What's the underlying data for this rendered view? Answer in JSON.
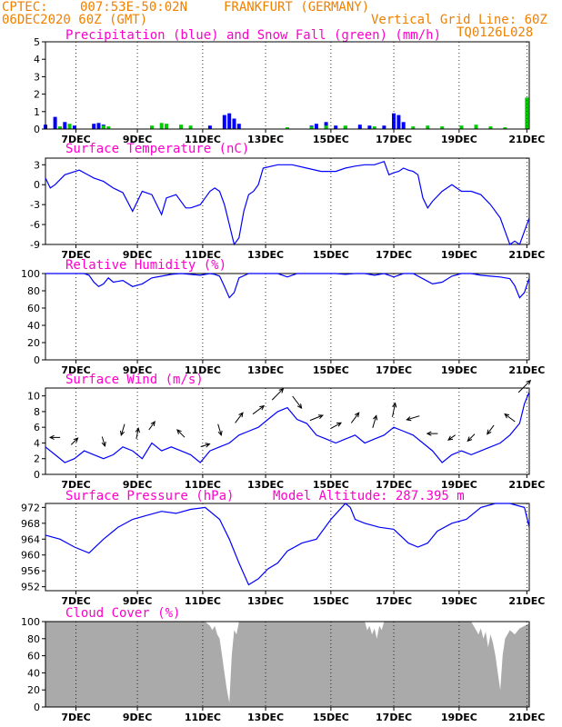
{
  "header": {
    "source": "CPTEC:",
    "coords": "007:53E-50:02N",
    "location": "FRANKFURT (GERMANY)",
    "run": "06DEC2020 60Z (GMT)",
    "grid_note": "Vertical Grid Line: 60Z",
    "code": "TQ0126L028"
  },
  "colors": {
    "header": "#f08000",
    "panel_title": "#ff00cc",
    "line": "#0000ff",
    "precip": "#0000ff",
    "snow": "#00cc00",
    "cloud": "#aaaaaa"
  },
  "chart_data": [
    {
      "id": "precip",
      "type": "bar",
      "title": "Precipitation (blue) and Snow Fall (green) (mm/h)",
      "ylim": [
        0,
        5
      ],
      "yticks": [
        "0",
        "1",
        "2",
        "3",
        "4",
        "5"
      ],
      "xticks": [
        "7DEC",
        "9DEC",
        "11DEC",
        "13DEC",
        "15DEC",
        "17DEC",
        "19DEC",
        "21DEC"
      ],
      "grid": true,
      "series": [
        {
          "name": "Precipitation",
          "color": "#0000ff",
          "points": [
            [
              0.0,
              0.25
            ],
            [
              0.02,
              0.7
            ],
            [
              0.04,
              0.4
            ],
            [
              0.06,
              0.2
            ],
            [
              0.1,
              0.3
            ],
            [
              0.11,
              0.35
            ],
            [
              0.12,
              0.25
            ],
            [
              0.34,
              0.2
            ],
            [
              0.37,
              0.8
            ],
            [
              0.38,
              0.9
            ],
            [
              0.39,
              0.6
            ],
            [
              0.4,
              0.3
            ],
            [
              0.55,
              0.2
            ],
            [
              0.56,
              0.3
            ],
            [
              0.58,
              0.4
            ],
            [
              0.6,
              0.2
            ],
            [
              0.62,
              0.15
            ],
            [
              0.65,
              0.25
            ],
            [
              0.67,
              0.2
            ],
            [
              0.7,
              0.2
            ],
            [
              0.72,
              0.9
            ],
            [
              0.73,
              0.8
            ],
            [
              0.74,
              0.4
            ]
          ]
        },
        {
          "name": "Snow Fall",
          "color": "#00cc00",
          "points": [
            [
              0.03,
              0.15
            ],
            [
              0.05,
              0.3
            ],
            [
              0.12,
              0.2
            ],
            [
              0.13,
              0.15
            ],
            [
              0.22,
              0.2
            ],
            [
              0.24,
              0.35
            ],
            [
              0.25,
              0.3
            ],
            [
              0.28,
              0.25
            ],
            [
              0.3,
              0.2
            ],
            [
              0.5,
              0.1
            ],
            [
              0.55,
              0.15
            ],
            [
              0.58,
              0.2
            ],
            [
              0.62,
              0.2
            ],
            [
              0.68,
              0.15
            ],
            [
              0.76,
              0.15
            ],
            [
              0.79,
              0.2
            ],
            [
              0.82,
              0.15
            ],
            [
              0.86,
              0.2
            ],
            [
              0.89,
              0.25
            ],
            [
              0.92,
              0.15
            ],
            [
              0.95,
              0.1
            ],
            [
              0.995,
              1.8
            ]
          ]
        }
      ]
    },
    {
      "id": "temp",
      "type": "line",
      "title": "Surface Temperature (nC)",
      "ylim": [
        -9,
        4
      ],
      "yticks": [
        "3",
        "0",
        "-3",
        "-6",
        "-9"
      ],
      "ytick_values": [
        3,
        0,
        -3,
        -6,
        -9
      ],
      "xticks": [
        "7DEC",
        "9DEC",
        "11DEC",
        "13DEC",
        "15DEC",
        "17DEC",
        "19DEC",
        "21DEC"
      ],
      "grid": true,
      "x": [
        0.0,
        0.01,
        0.02,
        0.04,
        0.07,
        0.08,
        0.1,
        0.12,
        0.14,
        0.16,
        0.18,
        0.2,
        0.22,
        0.24,
        0.25,
        0.27,
        0.29,
        0.3,
        0.32,
        0.33,
        0.34,
        0.35,
        0.36,
        0.37,
        0.38,
        0.39,
        0.4,
        0.41,
        0.42,
        0.43,
        0.44,
        0.45,
        0.48,
        0.51,
        0.54,
        0.57,
        0.6,
        0.62,
        0.64,
        0.66,
        0.68,
        0.7,
        0.71,
        0.72,
        0.73,
        0.74,
        0.75,
        0.76,
        0.77,
        0.78,
        0.79,
        0.8,
        0.82,
        0.84,
        0.86,
        0.88,
        0.9,
        0.92,
        0.94,
        0.95,
        0.96,
        0.97,
        0.98,
        0.99,
        1.0
      ],
      "values": [
        1.0,
        -0.5,
        0.0,
        1.5,
        2.2,
        1.8,
        1.0,
        0.5,
        -0.5,
        -1.2,
        -4.0,
        -1.0,
        -1.5,
        -4.5,
        -2.0,
        -1.5,
        -3.5,
        -3.5,
        -3.0,
        -2.0,
        -1.0,
        -0.5,
        -1.0,
        -3.0,
        -6.0,
        -9.0,
        -8.0,
        -4.0,
        -1.5,
        -1.0,
        0.0,
        2.5,
        3.0,
        3.0,
        2.5,
        2.0,
        2.0,
        2.5,
        2.8,
        3.0,
        3.0,
        3.5,
        1.5,
        1.8,
        2.0,
        2.5,
        2.2,
        2.0,
        1.5,
        -2.0,
        -3.5,
        -2.5,
        -1.0,
        0.0,
        -1.0,
        -1.0,
        -1.5,
        -3.0,
        -5.0,
        -7.0,
        -9.0,
        -8.5,
        -9.0,
        -7.0,
        -5.0
      ]
    },
    {
      "id": "rh",
      "type": "line",
      "title": "Relative Humidity (%)",
      "ylim": [
        0,
        100
      ],
      "yticks": [
        "100",
        "80",
        "60",
        "40",
        "20",
        "0"
      ],
      "ytick_values": [
        100,
        80,
        60,
        40,
        20,
        0
      ],
      "xticks": [
        "7DEC",
        "9DEC",
        "11DEC",
        "13DEC",
        "15DEC",
        "17DEC",
        "19DEC",
        "21DEC"
      ],
      "grid": true,
      "x": [
        0.0,
        0.02,
        0.04,
        0.06,
        0.08,
        0.09,
        0.1,
        0.11,
        0.12,
        0.13,
        0.14,
        0.16,
        0.18,
        0.2,
        0.22,
        0.24,
        0.26,
        0.28,
        0.3,
        0.32,
        0.34,
        0.35,
        0.36,
        0.37,
        0.38,
        0.39,
        0.4,
        0.42,
        0.44,
        0.46,
        0.48,
        0.5,
        0.52,
        0.54,
        0.56,
        0.58,
        0.6,
        0.62,
        0.64,
        0.66,
        0.68,
        0.7,
        0.72,
        0.74,
        0.76,
        0.78,
        0.8,
        0.82,
        0.84,
        0.86,
        0.88,
        0.9,
        0.92,
        0.94,
        0.96,
        0.97,
        0.98,
        0.99,
        1.0
      ],
      "values": [
        100,
        100,
        100,
        100,
        100,
        98,
        90,
        85,
        88,
        95,
        90,
        92,
        85,
        88,
        95,
        97,
        99,
        100,
        99,
        98,
        100,
        99,
        97,
        85,
        72,
        78,
        95,
        100,
        100,
        100,
        100,
        96,
        100,
        100,
        100,
        100,
        100,
        99,
        100,
        100,
        98,
        100,
        96,
        100,
        100,
        94,
        88,
        90,
        97,
        100,
        100,
        98,
        97,
        96,
        94,
        86,
        72,
        78,
        95
      ]
    },
    {
      "id": "wind",
      "type": "line",
      "title": "Surface Wind (m/s)",
      "ylim": [
        0,
        11
      ],
      "yticks": [
        "10",
        "8",
        "6",
        "4",
        "2",
        "0"
      ],
      "ytick_values": [
        10,
        8,
        6,
        4,
        2,
        0
      ],
      "xticks": [
        "7DEC",
        "9DEC",
        "11DEC",
        "13DEC",
        "15DEC",
        "17DEC",
        "19DEC",
        "21DEC"
      ],
      "grid": true,
      "x": [
        0.0,
        0.02,
        0.04,
        0.06,
        0.08,
        0.1,
        0.12,
        0.14,
        0.16,
        0.18,
        0.2,
        0.22,
        0.24,
        0.26,
        0.28,
        0.3,
        0.32,
        0.34,
        0.36,
        0.38,
        0.4,
        0.42,
        0.44,
        0.46,
        0.48,
        0.5,
        0.52,
        0.54,
        0.56,
        0.58,
        0.6,
        0.62,
        0.64,
        0.66,
        0.68,
        0.7,
        0.72,
        0.74,
        0.76,
        0.78,
        0.8,
        0.82,
        0.84,
        0.86,
        0.88,
        0.9,
        0.92,
        0.94,
        0.96,
        0.98,
        0.99,
        1.0
      ],
      "values": [
        3.5,
        2.5,
        1.5,
        2.0,
        3.0,
        2.5,
        2.0,
        2.5,
        3.5,
        3.0,
        2.0,
        4.0,
        3.0,
        3.5,
        3.0,
        2.5,
        1.5,
        3.0,
        3.5,
        4.0,
        5.0,
        5.5,
        6.0,
        7.0,
        8.0,
        8.5,
        7.0,
        6.5,
        5.0,
        4.5,
        4.0,
        4.5,
        5.0,
        4.0,
        4.5,
        5.0,
        6.0,
        5.5,
        5.0,
        4.0,
        3.0,
        1.5,
        2.5,
        3.0,
        2.5,
        3.0,
        3.5,
        4.0,
        5.0,
        6.5,
        9.0,
        10.5
      ],
      "arrows": [
        [
          0.02,
          -1,
          0
        ],
        [
          0.06,
          0.7,
          0.7
        ],
        [
          0.12,
          0.3,
          -1
        ],
        [
          0.16,
          -0.3,
          -1
        ],
        [
          0.19,
          0.2,
          1
        ],
        [
          0.22,
          0.5,
          0.7
        ],
        [
          0.28,
          -0.7,
          0.7
        ],
        [
          0.33,
          1,
          0.3
        ],
        [
          0.36,
          0.3,
          -1
        ],
        [
          0.4,
          0.6,
          0.8
        ],
        [
          0.44,
          0.8,
          0.6
        ],
        [
          0.48,
          0.7,
          0.7
        ],
        [
          0.52,
          0.6,
          -0.8
        ],
        [
          0.56,
          1,
          0.4
        ],
        [
          0.6,
          0.9,
          0.5
        ],
        [
          0.64,
          0.6,
          0.8
        ],
        [
          0.68,
          0.3,
          1
        ],
        [
          0.72,
          0.2,
          1
        ],
        [
          0.76,
          -1,
          -0.3
        ],
        [
          0.8,
          -1,
          0
        ],
        [
          0.84,
          -0.7,
          -0.5
        ],
        [
          0.88,
          -0.7,
          -0.7
        ],
        [
          0.92,
          -0.6,
          -0.8
        ],
        [
          0.96,
          -0.8,
          0.6
        ],
        [
          0.99,
          0.7,
          0.7
        ]
      ]
    },
    {
      "id": "pres",
      "type": "line",
      "title": "Surface Pressure (hPa)",
      "subtitle": "Model Altitude: 287.395 m",
      "ylim": [
        951,
        973
      ],
      "yticks": [
        "972",
        "968",
        "964",
        "960",
        "956",
        "952"
      ],
      "ytick_values": [
        972,
        968,
        964,
        960,
        956,
        952
      ],
      "xticks": [
        "7DEC",
        "9DEC",
        "11DEC",
        "13DEC",
        "15DEC",
        "17DEC",
        "19DEC",
        "21DEC"
      ],
      "grid": true,
      "x": [
        0.0,
        0.03,
        0.06,
        0.09,
        0.12,
        0.15,
        0.18,
        0.21,
        0.24,
        0.27,
        0.3,
        0.33,
        0.36,
        0.38,
        0.4,
        0.42,
        0.44,
        0.46,
        0.48,
        0.5,
        0.53,
        0.56,
        0.59,
        0.62,
        0.63,
        0.64,
        0.66,
        0.69,
        0.72,
        0.75,
        0.77,
        0.79,
        0.81,
        0.84,
        0.87,
        0.9,
        0.93,
        0.96,
        0.99,
        1.0
      ],
      "values": [
        965,
        964,
        962,
        960.5,
        964,
        967,
        969,
        970,
        971,
        970.5,
        971.5,
        972,
        969,
        964,
        958,
        952.5,
        954,
        956.5,
        958,
        961,
        963,
        964,
        969,
        973,
        972,
        969,
        968,
        967,
        966.5,
        963,
        962,
        963,
        966,
        968,
        969,
        972,
        973,
        973,
        972,
        967
      ]
    },
    {
      "id": "cloud",
      "type": "area",
      "title": "Cloud Cover (%)",
      "ylim": [
        0,
        100
      ],
      "yticks": [
        "100",
        "80",
        "60",
        "40",
        "20",
        "0"
      ],
      "ytick_values": [
        100,
        80,
        60,
        40,
        20,
        0
      ],
      "xticks": [
        "7DEC",
        "9DEC",
        "11DEC",
        "13DEC",
        "15DEC",
        "17DEC",
        "19DEC",
        "21DEC"
      ],
      "grid": true,
      "x": [
        0.0,
        0.33,
        0.34,
        0.345,
        0.35,
        0.355,
        0.36,
        0.365,
        0.37,
        0.375,
        0.38,
        0.385,
        0.39,
        0.395,
        0.4,
        0.66,
        0.665,
        0.67,
        0.675,
        0.68,
        0.685,
        0.69,
        0.695,
        0.7,
        0.88,
        0.885,
        0.89,
        0.895,
        0.9,
        0.905,
        0.91,
        0.915,
        0.92,
        0.925,
        0.93,
        0.935,
        0.94,
        0.945,
        0.95,
        0.96,
        0.97,
        0.98,
        0.99,
        1.0
      ],
      "values": [
        100,
        100,
        95,
        90,
        95,
        85,
        80,
        60,
        40,
        20,
        5,
        60,
        90,
        85,
        100,
        100,
        90,
        95,
        85,
        92,
        80,
        95,
        90,
        100,
        100,
        95,
        90,
        85,
        92,
        80,
        88,
        70,
        85,
        75,
        60,
        40,
        20,
        60,
        80,
        90,
        85,
        92,
        95,
        98
      ]
    }
  ]
}
